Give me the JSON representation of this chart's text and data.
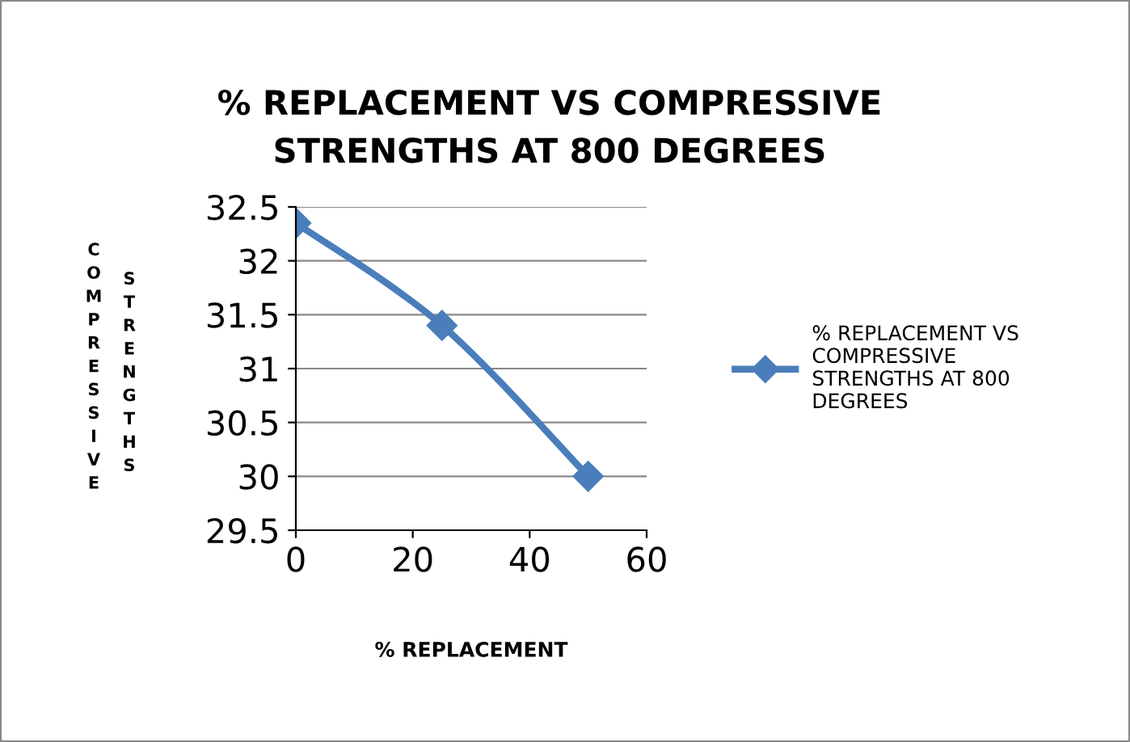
{
  "chart_data": {
    "type": "line",
    "title": "% REPLACEMENT VS COMPRESSIVE STRENGTHS AT 800 DEGREES",
    "xlabel": "% REPLACEMENT",
    "ylabel": "COMPRESSIVE STRENGTHS",
    "x": [
      0,
      25,
      50
    ],
    "series": [
      {
        "name": "% REPLACEMENT VS COMPRESSIVE STRENGTHS AT 800 DEGREES",
        "color": "#4a7ebb",
        "values": [
          32.35,
          31.4,
          30.0
        ]
      }
    ],
    "xlim": [
      0,
      60
    ],
    "xticks": [
      0,
      20,
      40,
      60
    ],
    "ylim": [
      29.5,
      32.5
    ],
    "yticks": [
      29.5,
      30,
      30.5,
      31,
      31.5,
      32,
      32.5
    ],
    "grid": "y",
    "legend": "right",
    "marker": "diamond",
    "line_style": "solid"
  }
}
